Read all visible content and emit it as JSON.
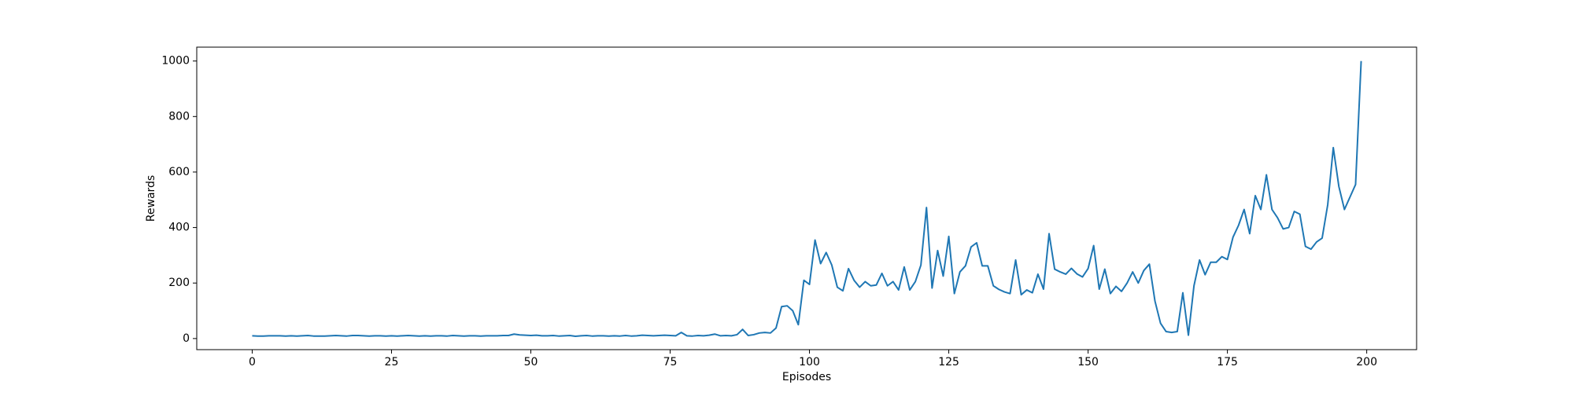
{
  "chart_data": {
    "type": "line",
    "xlabel": "Episodes",
    "ylabel": "Rewards",
    "x": [
      0,
      1,
      2,
      3,
      4,
      5,
      6,
      7,
      8,
      9,
      10,
      11,
      12,
      13,
      14,
      15,
      16,
      17,
      18,
      19,
      20,
      21,
      22,
      23,
      24,
      25,
      26,
      27,
      28,
      29,
      30,
      31,
      32,
      33,
      34,
      35,
      36,
      37,
      38,
      39,
      40,
      41,
      42,
      43,
      44,
      45,
      46,
      47,
      48,
      49,
      50,
      51,
      52,
      53,
      54,
      55,
      56,
      57,
      58,
      59,
      60,
      61,
      62,
      63,
      64,
      65,
      66,
      67,
      68,
      69,
      70,
      71,
      72,
      73,
      74,
      75,
      76,
      77,
      78,
      79,
      80,
      81,
      82,
      83,
      84,
      85,
      86,
      87,
      88,
      89,
      90,
      91,
      92,
      93,
      94,
      95,
      96,
      97,
      98,
      99,
      100,
      101,
      102,
      103,
      104,
      105,
      106,
      107,
      108,
      109,
      110,
      111,
      112,
      113,
      114,
      115,
      116,
      117,
      118,
      119,
      120,
      121,
      122,
      123,
      124,
      125,
      126,
      127,
      128,
      129,
      130,
      131,
      132,
      133,
      134,
      135,
      136,
      137,
      138,
      139,
      140,
      141,
      142,
      143,
      144,
      145,
      146,
      147,
      148,
      149,
      150,
      151,
      152,
      153,
      154,
      155,
      156,
      157,
      158,
      159,
      160,
      161,
      162,
      163,
      164,
      165,
      166,
      167,
      168,
      169,
      170,
      171,
      172,
      173,
      174,
      175,
      176,
      177,
      178,
      179,
      180,
      181,
      182,
      183,
      184,
      185,
      186,
      187,
      188,
      189,
      190,
      191,
      192,
      193,
      194,
      195,
      196,
      197,
      198,
      199
    ],
    "series": [
      {
        "color": "#1f77b4",
        "values": [
          10,
          9,
          9,
          10,
          10,
          10,
          9,
          10,
          9,
          10,
          11,
          9,
          9,
          9,
          10,
          11,
          10,
          9,
          11,
          11,
          10,
          9,
          10,
          10,
          9,
          10,
          9,
          10,
          11,
          10,
          9,
          10,
          9,
          10,
          10,
          9,
          11,
          10,
          9,
          10,
          10,
          9,
          10,
          10,
          10,
          11,
          11,
          16,
          13,
          12,
          11,
          12,
          10,
          10,
          11,
          9,
          10,
          11,
          8,
          10,
          11,
          9,
          10,
          10,
          9,
          10,
          9,
          11,
          9,
          10,
          12,
          11,
          10,
          11,
          12,
          11,
          10,
          22,
          10,
          9,
          11,
          10,
          12,
          16,
          10,
          11,
          10,
          14,
          33,
          11,
          14,
          20,
          22,
          20,
          38,
          115,
          118,
          100,
          50,
          210,
          195,
          355,
          270,
          310,
          265,
          185,
          172,
          252,
          210,
          185,
          205,
          190,
          193,
          235,
          190,
          205,
          175,
          258,
          175,
          205,
          265,
          472,
          182,
          317,
          225,
          368,
          162,
          240,
          262,
          330,
          345,
          262,
          262,
          190,
          177,
          168,
          162,
          283,
          158,
          175,
          165,
          232,
          178,
          378,
          250,
          240,
          232,
          253,
          233,
          222,
          252,
          335,
          178,
          250,
          162,
          188,
          170,
          200,
          240,
          200,
          245,
          268,
          135,
          55,
          25,
          22,
          25,
          165,
          12,
          190,
          283,
          230,
          275,
          275,
          295,
          285,
          365,
          408,
          465,
          378,
          515,
          465,
          590,
          465,
          435,
          395,
          400,
          458,
          448,
          332,
          322,
          348,
          362,
          482,
          688,
          548,
          465,
          510,
          555,
          1000
        ]
      }
    ],
    "xlim": [
      -9.95,
      208.95
    ],
    "ylim": [
      -40,
      1050
    ],
    "xticks": [
      0,
      25,
      50,
      75,
      100,
      125,
      150,
      175,
      200
    ],
    "yticks": [
      0,
      200,
      400,
      600,
      800,
      1000
    ]
  }
}
